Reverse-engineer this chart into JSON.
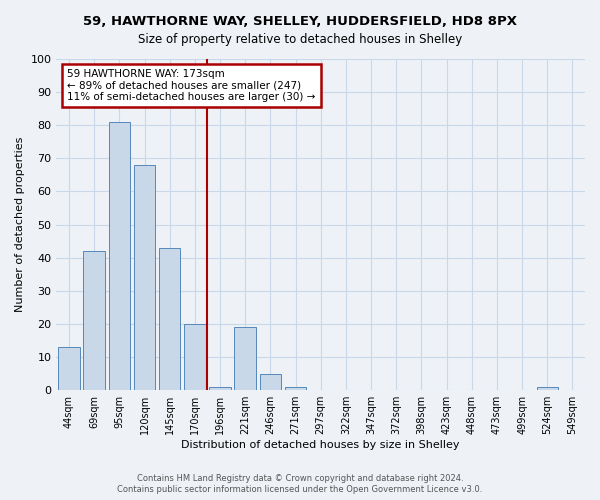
{
  "title": "59, HAWTHORNE WAY, SHELLEY, HUDDERSFIELD, HD8 8PX",
  "subtitle": "Size of property relative to detached houses in Shelley",
  "xlabel": "Distribution of detached houses by size in Shelley",
  "ylabel": "Number of detached properties",
  "bar_labels": [
    "44sqm",
    "69sqm",
    "95sqm",
    "120sqm",
    "145sqm",
    "170sqm",
    "196sqm",
    "221sqm",
    "246sqm",
    "271sqm",
    "297sqm",
    "322sqm",
    "347sqm",
    "372sqm",
    "398sqm",
    "423sqm",
    "448sqm",
    "473sqm",
    "499sqm",
    "524sqm",
    "549sqm"
  ],
  "bar_values": [
    13,
    42,
    81,
    68,
    43,
    20,
    1,
    19,
    5,
    1,
    0,
    0,
    0,
    0,
    0,
    0,
    0,
    0,
    0,
    1,
    0
  ],
  "bar_color": "#c8d8e8",
  "bar_edgecolor": "#5588bb",
  "vline_x": 5.5,
  "vline_color": "#aa0000",
  "annotation_text": "59 HAWTHORNE WAY: 173sqm\n← 89% of detached houses are smaller (247)\n11% of semi-detached houses are larger (30) →",
  "annotation_box_color": "#ffffff",
  "annotation_box_edgecolor": "#aa0000",
  "ylim": [
    0,
    100
  ],
  "yticks": [
    0,
    10,
    20,
    30,
    40,
    50,
    60,
    70,
    80,
    90,
    100
  ],
  "grid_color": "#c8d8e8",
  "background_color": "#eef2f7",
  "footer_line1": "Contains HM Land Registry data © Crown copyright and database right 2024.",
  "footer_line2": "Contains public sector information licensed under the Open Government Licence v3.0."
}
